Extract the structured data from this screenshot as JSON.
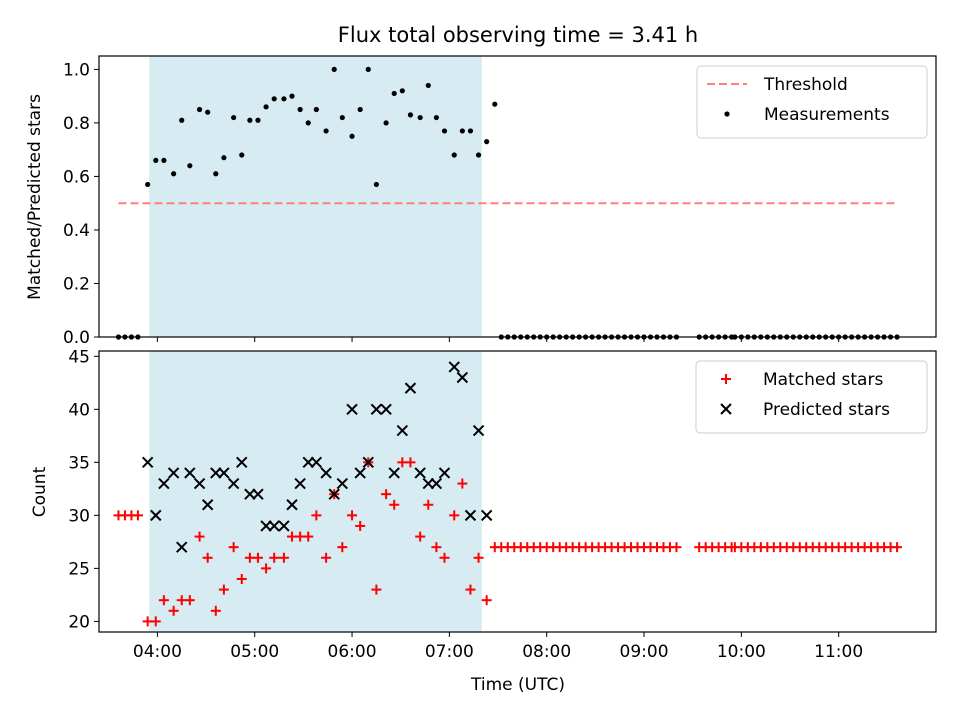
{
  "chart_data": [
    {
      "type": "scatter",
      "title": "Flux total observing time = 3.41 h",
      "xlabel": "",
      "ylabel": "Matched/Predicted stars",
      "xlim": [
        "03:24",
        "12:00"
      ],
      "ylim": [
        0,
        1.05
      ],
      "yticks": [
        "0.0",
        "0.2",
        "0.4",
        "0.6",
        "0.8",
        "1.0"
      ],
      "xticks": [
        "04:00",
        "05:00",
        "06:00",
        "07:00",
        "08:00",
        "09:00",
        "10:00",
        "11:00"
      ],
      "xtick_labels_shown": false,
      "observing_window": [
        "03:55",
        "07:20"
      ],
      "legend_position": "upper right",
      "series": [
        {
          "name": "Threshold",
          "style": "dashed-line",
          "color": "#ff7f7f",
          "x": [
            "03:36",
            "11:36"
          ],
          "y": [
            0.5,
            0.5
          ]
        },
        {
          "name": "Measurements",
          "style": "dot",
          "color": "#000000",
          "x": [
            "03:36",
            "03:40",
            "03:44",
            "03:48",
            "03:54",
            "03:59",
            "04:04",
            "04:10",
            "04:15",
            "04:20",
            "04:26",
            "04:31",
            "04:36",
            "04:41",
            "04:47",
            "04:52",
            "04:57",
            "05:02",
            "05:07",
            "05:12",
            "05:18",
            "05:23",
            "05:28",
            "05:33",
            "05:38",
            "05:44",
            "05:49",
            "05:54",
            "06:00",
            "06:05",
            "06:10",
            "06:15",
            "06:21",
            "06:26",
            "06:31",
            "06:36",
            "06:42",
            "06:47",
            "06:52",
            "06:57",
            "07:03",
            "07:08",
            "07:13",
            "07:18",
            "07:23",
            "07:28",
            "07:32",
            "07:36",
            "07:40",
            "07:44",
            "07:48",
            "07:52",
            "07:56",
            "08:00",
            "08:04",
            "08:08",
            "08:12",
            "08:16",
            "08:20",
            "08:24",
            "08:28",
            "08:32",
            "08:36",
            "08:40",
            "08:44",
            "08:48",
            "08:52",
            "08:56",
            "09:00",
            "09:04",
            "09:08",
            "09:12",
            "09:16",
            "09:20",
            "09:34",
            "09:38",
            "09:42",
            "09:46",
            "09:50",
            "09:54",
            "09:56",
            "10:00",
            "10:04",
            "10:08",
            "10:12",
            "10:16",
            "10:20",
            "10:24",
            "10:28",
            "10:32",
            "10:36",
            "10:40",
            "10:44",
            "10:48",
            "10:52",
            "10:56",
            "11:00",
            "11:04",
            "11:08",
            "11:12",
            "11:16",
            "11:20",
            "11:24",
            "11:28",
            "11:32",
            "11:36"
          ],
          "y": [
            0,
            0,
            0,
            0,
            0.57,
            0.66,
            0.66,
            0.61,
            0.81,
            0.64,
            0.85,
            0.84,
            0.61,
            0.67,
            0.82,
            0.68,
            0.81,
            0.81,
            0.86,
            0.89,
            0.89,
            0.9,
            0.85,
            0.8,
            0.85,
            0.77,
            1.0,
            0.82,
            0.75,
            0.85,
            1.0,
            0.57,
            0.8,
            0.91,
            0.92,
            0.83,
            0.82,
            0.94,
            0.82,
            0.77,
            0.68,
            0.77,
            0.77,
            0.68,
            0.73,
            0.87,
            0,
            0,
            0,
            0,
            0,
            0,
            0,
            0,
            0,
            0,
            0,
            0,
            0,
            0,
            0,
            0,
            0,
            0,
            0,
            0,
            0,
            0,
            0,
            0,
            0,
            0,
            0,
            0,
            0,
            0,
            0,
            0,
            0,
            0,
            0,
            0,
            0,
            0,
            0,
            0,
            0,
            0,
            0,
            0,
            0,
            0,
            0,
            0,
            0,
            0,
            0,
            0,
            0,
            0,
            0,
            0,
            0,
            0,
            0,
            0
          ]
        }
      ]
    },
    {
      "type": "scatter",
      "title": "",
      "xlabel": "Time (UTC)",
      "ylabel": "Count",
      "xlim": [
        "03:24",
        "12:00"
      ],
      "ylim": [
        19,
        45.5
      ],
      "yticks": [
        "20",
        "25",
        "30",
        "35",
        "40",
        "45"
      ],
      "xticks": [
        "04:00",
        "05:00",
        "06:00",
        "07:00",
        "08:00",
        "09:00",
        "10:00",
        "11:00"
      ],
      "observing_window": [
        "03:55",
        "07:20"
      ],
      "legend_position": "upper right",
      "series": [
        {
          "name": "Matched stars",
          "style": "plus",
          "color": "#ff0000",
          "x": [
            "03:36",
            "03:40",
            "03:44",
            "03:48",
            "03:54",
            "03:59",
            "04:04",
            "04:10",
            "04:15",
            "04:20",
            "04:26",
            "04:31",
            "04:36",
            "04:41",
            "04:47",
            "04:52",
            "04:57",
            "05:02",
            "05:07",
            "05:12",
            "05:18",
            "05:23",
            "05:28",
            "05:33",
            "05:38",
            "05:44",
            "05:49",
            "05:54",
            "06:00",
            "06:05",
            "06:10",
            "06:15",
            "06:21",
            "06:26",
            "06:31",
            "06:36",
            "06:42",
            "06:47",
            "06:52",
            "06:57",
            "07:03",
            "07:08",
            "07:13",
            "07:18",
            "07:23",
            "07:28",
            "07:32",
            "07:36",
            "07:40",
            "07:44",
            "07:48",
            "07:52",
            "07:56",
            "08:00",
            "08:04",
            "08:08",
            "08:12",
            "08:16",
            "08:20",
            "08:24",
            "08:28",
            "08:32",
            "08:36",
            "08:40",
            "08:44",
            "08:48",
            "08:52",
            "08:56",
            "09:00",
            "09:04",
            "09:08",
            "09:12",
            "09:16",
            "09:20",
            "09:34",
            "09:38",
            "09:42",
            "09:46",
            "09:50",
            "09:54",
            "09:56",
            "10:00",
            "10:04",
            "10:08",
            "10:12",
            "10:16",
            "10:20",
            "10:24",
            "10:28",
            "10:32",
            "10:36",
            "10:40",
            "10:44",
            "10:48",
            "10:52",
            "10:56",
            "11:00",
            "11:04",
            "11:08",
            "11:12",
            "11:16",
            "11:20",
            "11:24",
            "11:28",
            "11:32",
            "11:36"
          ],
          "y": [
            30,
            30,
            30,
            30,
            20,
            20,
            22,
            21,
            22,
            22,
            28,
            26,
            21,
            23,
            27,
            24,
            26,
            26,
            25,
            26,
            26,
            28,
            28,
            28,
            30,
            26,
            32,
            27,
            30,
            29,
            35,
            23,
            32,
            31,
            35,
            35,
            28,
            31,
            27,
            26,
            30,
            33,
            23,
            26,
            22,
            27,
            27,
            27,
            27,
            27,
            27,
            27,
            27,
            27,
            27,
            27,
            27,
            27,
            27,
            27,
            27,
            27,
            27,
            27,
            27,
            27,
            27,
            27,
            27,
            27,
            27,
            27,
            27,
            27,
            27,
            27,
            27,
            27,
            27,
            27,
            27,
            27,
            27,
            27,
            27,
            27,
            27,
            27,
            27,
            27,
            27,
            27,
            27,
            27,
            27,
            27,
            27,
            27,
            27,
            27,
            27,
            27,
            27,
            27,
            27,
            27
          ]
        },
        {
          "name": "Predicted stars",
          "style": "x",
          "color": "#000000",
          "x": [
            "03:54",
            "03:59",
            "04:04",
            "04:10",
            "04:15",
            "04:20",
            "04:26",
            "04:31",
            "04:36",
            "04:41",
            "04:47",
            "04:52",
            "04:57",
            "05:02",
            "05:07",
            "05:12",
            "05:18",
            "05:23",
            "05:28",
            "05:33",
            "05:38",
            "05:44",
            "05:49",
            "05:54",
            "06:00",
            "06:05",
            "06:10",
            "06:15",
            "06:21",
            "06:26",
            "06:31",
            "06:36",
            "06:42",
            "06:47",
            "06:52",
            "06:57",
            "07:03",
            "07:08",
            "07:13",
            "07:18",
            "07:23"
          ],
          "y": [
            35,
            30,
            33,
            34,
            27,
            34,
            33,
            31,
            34,
            34,
            33,
            35,
            32,
            32,
            29,
            29,
            29,
            31,
            33,
            35,
            35,
            34,
            32,
            33,
            40,
            34,
            35,
            40,
            40,
            34,
            38,
            42,
            34,
            33,
            33,
            34,
            44,
            43,
            30,
            38,
            30
          ]
        }
      ]
    }
  ]
}
